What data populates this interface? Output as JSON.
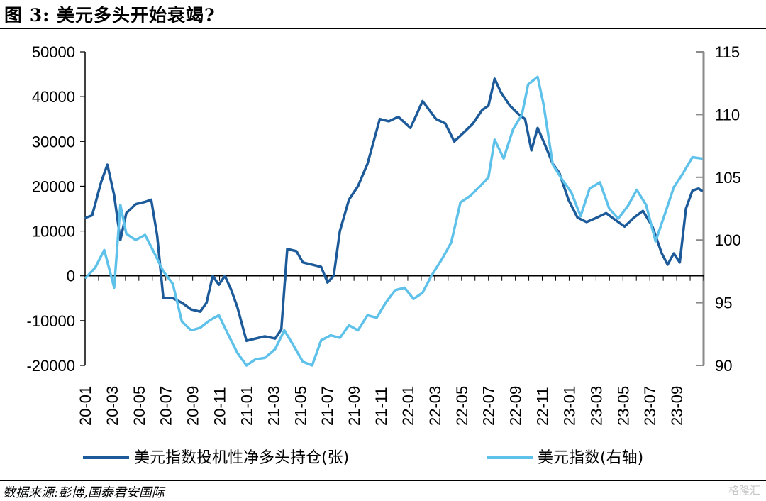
{
  "figure": {
    "title": "图 3:  美元多头开始衰竭?",
    "source": "数据来源:彭博,国泰君安国际",
    "watermark": "格隆汇"
  },
  "chart_data": {
    "type": "line",
    "title": "美元多头开始衰竭?",
    "x_tick_labels": [
      "20-01",
      "20-03",
      "20-05",
      "20-07",
      "20-09",
      "20-11",
      "21-01",
      "21-03",
      "21-05",
      "21-07",
      "21-09",
      "21-11",
      "22-01",
      "22-03",
      "22-05",
      "22-07",
      "22-09",
      "22-11",
      "23-01",
      "23-03",
      "23-05",
      "23-07",
      "23-09"
    ],
    "x_range": [
      "2020-01",
      "2023-10"
    ],
    "y_left": {
      "range": [
        -20000,
        50000
      ],
      "ticks": [
        -20000,
        -10000,
        0,
        10000,
        20000,
        30000,
        40000,
        50000
      ]
    },
    "y_right": {
      "range": [
        90,
        115
      ],
      "ticks": [
        90,
        95,
        100,
        105,
        110,
        115
      ]
    },
    "legend_position": "bottom",
    "colors": {
      "net_long": "#1c5a99",
      "dxy": "#5ec1ea"
    },
    "series": [
      {
        "name": "美元指数投机性净多头持仓(张)",
        "axis": "left",
        "points": [
          [
            "2020-01-03",
            13000
          ],
          [
            "2020-01-17",
            13500
          ],
          [
            "2020-02-07",
            21000
          ],
          [
            "2020-02-21",
            24800
          ],
          [
            "2020-03-06",
            18000
          ],
          [
            "2020-03-20",
            8000
          ],
          [
            "2020-04-03",
            14000
          ],
          [
            "2020-04-24",
            16000
          ],
          [
            "2020-05-15",
            16500
          ],
          [
            "2020-05-29",
            17000
          ],
          [
            "2020-06-12",
            9000
          ],
          [
            "2020-06-26",
            -5000
          ],
          [
            "2020-07-17",
            -5000
          ],
          [
            "2020-08-07",
            -6000
          ],
          [
            "2020-08-28",
            -7500
          ],
          [
            "2020-09-18",
            -8000
          ],
          [
            "2020-10-02",
            -6000
          ],
          [
            "2020-10-16",
            0
          ],
          [
            "2020-10-30",
            -2000
          ],
          [
            "2020-11-13",
            0
          ],
          [
            "2020-11-27",
            -3000
          ],
          [
            "2020-12-11",
            -7000
          ],
          [
            "2021-01-01",
            -14500
          ],
          [
            "2021-01-22",
            -14000
          ],
          [
            "2021-02-12",
            -13500
          ],
          [
            "2021-03-05",
            -14000
          ],
          [
            "2021-03-19",
            -12000
          ],
          [
            "2021-04-02",
            6000
          ],
          [
            "2021-04-23",
            5500
          ],
          [
            "2021-05-07",
            3000
          ],
          [
            "2021-05-28",
            2500
          ],
          [
            "2021-06-18",
            2000
          ],
          [
            "2021-07-02",
            -1500
          ],
          [
            "2021-07-16",
            0
          ],
          [
            "2021-07-30",
            10000
          ],
          [
            "2021-08-20",
            17000
          ],
          [
            "2021-09-10",
            20000
          ],
          [
            "2021-10-01",
            25000
          ],
          [
            "2021-10-15",
            30000
          ],
          [
            "2021-10-29",
            35000
          ],
          [
            "2021-11-19",
            34500
          ],
          [
            "2021-12-10",
            35500
          ],
          [
            "2022-01-07",
            33000
          ],
          [
            "2022-01-21",
            36000
          ],
          [
            "2022-02-04",
            39000
          ],
          [
            "2022-03-04",
            35000
          ],
          [
            "2022-03-25",
            34000
          ],
          [
            "2022-04-15",
            30000
          ],
          [
            "2022-05-06",
            32000
          ],
          [
            "2022-05-27",
            34000
          ],
          [
            "2022-06-17",
            37000
          ],
          [
            "2022-07-01",
            38000
          ],
          [
            "2022-07-15",
            44000
          ],
          [
            "2022-07-29",
            41000
          ],
          [
            "2022-08-19",
            38000
          ],
          [
            "2022-09-09",
            36000
          ],
          [
            "2022-09-23",
            35000
          ],
          [
            "2022-10-07",
            28000
          ],
          [
            "2022-10-21",
            33000
          ],
          [
            "2022-11-04",
            30000
          ],
          [
            "2022-11-25",
            25000
          ],
          [
            "2022-12-09",
            23000
          ],
          [
            "2022-12-30",
            17000
          ],
          [
            "2023-01-20",
            13000
          ],
          [
            "2023-02-10",
            12000
          ],
          [
            "2023-03-03",
            13000
          ],
          [
            "2023-03-24",
            14000
          ],
          [
            "2023-04-14",
            12500
          ],
          [
            "2023-05-05",
            11000
          ],
          [
            "2023-05-26",
            13000
          ],
          [
            "2023-06-16",
            14500
          ],
          [
            "2023-07-07",
            11000
          ],
          [
            "2023-07-28",
            5000
          ],
          [
            "2023-08-11",
            2500
          ],
          [
            "2023-08-25",
            5000
          ],
          [
            "2023-09-08",
            3000
          ],
          [
            "2023-09-22",
            15000
          ],
          [
            "2023-10-06",
            19000
          ],
          [
            "2023-10-20",
            19500
          ],
          [
            "2023-10-27",
            19000
          ]
        ]
      },
      {
        "name": "美元指数(右轴)",
        "axis": "right",
        "points": [
          [
            "2020-01-03",
            97.0
          ],
          [
            "2020-01-24",
            97.8
          ],
          [
            "2020-02-14",
            99.2
          ],
          [
            "2020-03-06",
            96.2
          ],
          [
            "2020-03-20",
            102.8
          ],
          [
            "2020-04-03",
            100.5
          ],
          [
            "2020-04-24",
            100.0
          ],
          [
            "2020-05-15",
            100.4
          ],
          [
            "2020-06-05",
            99.0
          ],
          [
            "2020-06-26",
            97.5
          ],
          [
            "2020-07-17",
            96.5
          ],
          [
            "2020-08-07",
            93.5
          ],
          [
            "2020-08-28",
            92.8
          ],
          [
            "2020-09-18",
            93.0
          ],
          [
            "2020-10-09",
            93.6
          ],
          [
            "2020-10-30",
            94.0
          ],
          [
            "2020-11-20",
            92.5
          ],
          [
            "2020-12-11",
            91.0
          ],
          [
            "2021-01-01",
            90.0
          ],
          [
            "2021-01-22",
            90.5
          ],
          [
            "2021-02-12",
            90.6
          ],
          [
            "2021-03-05",
            91.3
          ],
          [
            "2021-03-26",
            92.8
          ],
          [
            "2021-04-16",
            91.6
          ],
          [
            "2021-05-07",
            90.3
          ],
          [
            "2021-05-28",
            90.0
          ],
          [
            "2021-06-18",
            92.0
          ],
          [
            "2021-07-09",
            92.4
          ],
          [
            "2021-07-30",
            92.2
          ],
          [
            "2021-08-20",
            93.2
          ],
          [
            "2021-09-10",
            92.8
          ],
          [
            "2021-10-01",
            94.0
          ],
          [
            "2021-10-22",
            93.8
          ],
          [
            "2021-11-12",
            95.0
          ],
          [
            "2021-12-03",
            96.0
          ],
          [
            "2021-12-24",
            96.2
          ],
          [
            "2022-01-14",
            95.3
          ],
          [
            "2022-02-04",
            95.8
          ],
          [
            "2022-02-25",
            97.2
          ],
          [
            "2022-03-18",
            98.5
          ],
          [
            "2022-04-08",
            99.8
          ],
          [
            "2022-04-29",
            103.0
          ],
          [
            "2022-05-20",
            103.5
          ],
          [
            "2022-06-10",
            104.2
          ],
          [
            "2022-07-01",
            105.0
          ],
          [
            "2022-07-15",
            108.0
          ],
          [
            "2022-08-05",
            106.5
          ],
          [
            "2022-08-26",
            108.8
          ],
          [
            "2022-09-16",
            110.0
          ],
          [
            "2022-09-30",
            112.4
          ],
          [
            "2022-10-21",
            113.0
          ],
          [
            "2022-11-04",
            110.8
          ],
          [
            "2022-11-25",
            106.0
          ],
          [
            "2022-12-16",
            104.8
          ],
          [
            "2023-01-06",
            103.8
          ],
          [
            "2023-01-27",
            101.9
          ],
          [
            "2023-02-17",
            104.1
          ],
          [
            "2023-03-10",
            104.6
          ],
          [
            "2023-03-31",
            102.5
          ],
          [
            "2023-04-21",
            101.7
          ],
          [
            "2023-05-12",
            102.7
          ],
          [
            "2023-06-02",
            104.0
          ],
          [
            "2023-06-23",
            102.8
          ],
          [
            "2023-07-14",
            99.9
          ],
          [
            "2023-08-04",
            102.0
          ],
          [
            "2023-08-25",
            104.2
          ],
          [
            "2023-09-15",
            105.3
          ],
          [
            "2023-10-06",
            106.6
          ],
          [
            "2023-10-27",
            106.5
          ]
        ]
      }
    ]
  }
}
